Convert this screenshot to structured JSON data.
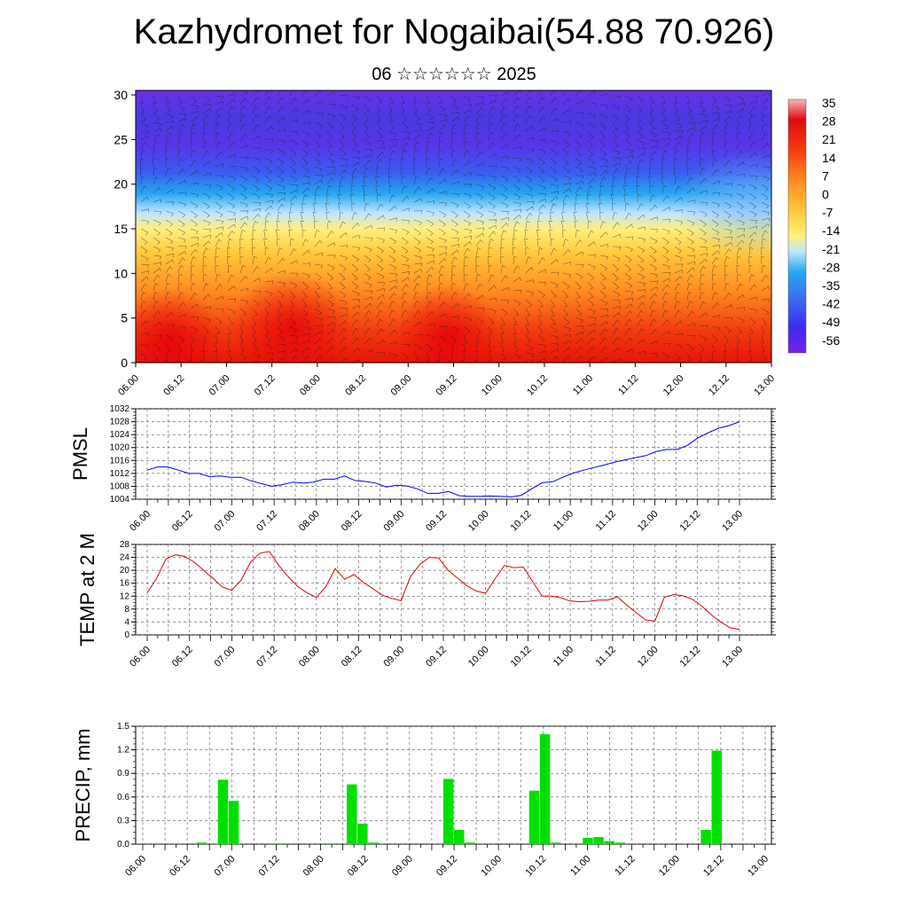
{
  "header": {
    "title": "Kazhydromet for Nogaibai(54.88 70.926)",
    "subtitle": "06 ☆☆☆☆☆☆ 2025"
  },
  "chart_data": [
    {
      "id": "cross_section",
      "type": "heatmap",
      "title": "",
      "xlabel": "",
      "ylabel": "",
      "x_ticks": [
        "06.00",
        "06.12",
        "07.00",
        "07.12",
        "08.00",
        "08.12",
        "09.00",
        "09.12",
        "10.00",
        "10.12",
        "11.00",
        "11.12",
        "12.00",
        "12.12",
        "13.00"
      ],
      "y_ticks": [
        0,
        5,
        10,
        15,
        20,
        25,
        30
      ],
      "ylim": [
        0,
        30.5
      ],
      "colorbar_labels": [
        "35",
        "28",
        "21",
        "14",
        "7",
        "0",
        "-7",
        "-14",
        "-21",
        "-28",
        "-35",
        "-42",
        "-49",
        "-56"
      ],
      "colors": {
        "warm": "#e8140a",
        "mid": "#ffd84a",
        "cold": "#6a2ce8",
        "cyan": "#27a8f0"
      },
      "overlay": "wind barbs and streamlines"
    },
    {
      "id": "pmsl",
      "type": "line",
      "ylabel": "PMSL",
      "ylim": [
        1004,
        1032
      ],
      "y_ticks": [
        1004,
        1008,
        1012,
        1016,
        1020,
        1024,
        1028,
        1032
      ],
      "x_ticks": [
        "06.00",
        "06.12",
        "07.00",
        "07.12",
        "08.00",
        "08.12",
        "09.00",
        "09.12",
        "10.00",
        "10.12",
        "11.00",
        "11.12",
        "12.00",
        "12.12",
        "13.00"
      ],
      "color": "#0000ff",
      "values": [
        1013,
        1014,
        1014,
        1013,
        1012,
        1012,
        1011,
        1011.2,
        1010.8,
        1010.8,
        1009.7,
        1008.8,
        1008,
        1008.5,
        1009.3,
        1009,
        1009.3,
        1010.2,
        1010.2,
        1011.2,
        1009.8,
        1009.5,
        1009,
        1007.8,
        1008.3,
        1008.1,
        1007.2,
        1005.8,
        1005.8,
        1006.4,
        1005.1,
        1004.9,
        1004.9,
        1005,
        1004.9,
        1004.7,
        1005.2,
        1007.2,
        1009.1,
        1009.4,
        1010.8,
        1012.1,
        1013,
        1013.8,
        1014.6,
        1015.5,
        1016.2,
        1016.9,
        1017.5,
        1018.8,
        1019.4,
        1019.4,
        1020.7,
        1023,
        1024.6,
        1026,
        1026.8,
        1028
      ]
    },
    {
      "id": "temp2m",
      "type": "line",
      "ylabel": "TEMP at 2 M",
      "ylim": [
        0,
        28
      ],
      "y_ticks": [
        0,
        4,
        8,
        12,
        16,
        20,
        24,
        28
      ],
      "x_ticks": [
        "06.00",
        "06.12",
        "07.00",
        "07.12",
        "08.00",
        "08.12",
        "09.00",
        "09.12",
        "10.00",
        "10.12",
        "11.00",
        "11.12",
        "12.00",
        "12.12",
        "13.00"
      ],
      "color": "#e00000",
      "values": [
        13,
        17.5,
        23.5,
        24.8,
        24.3,
        22.5,
        20,
        17.5,
        14.8,
        13.8,
        17,
        22.5,
        25.3,
        25.8,
        21.5,
        18,
        15,
        13,
        11.6,
        15,
        20.5,
        17.2,
        18.7,
        16.2,
        14.3,
        12.3,
        11.3,
        10.6,
        18,
        21.8,
        24,
        23.8,
        20,
        17.6,
        15.2,
        13.6,
        12.9,
        17.4,
        21.5,
        20.8,
        21,
        16.5,
        12,
        12,
        11.5,
        10.5,
        10.3,
        10.4,
        10.8,
        10.8,
        11.8,
        9.2,
        6.9,
        4.6,
        4.3,
        11.6,
        12.5,
        12.1,
        11,
        8.9,
        6.2,
        4,
        2.2,
        1.7
      ]
    },
    {
      "id": "precip",
      "type": "bar",
      "ylabel": "PRECIP, mm",
      "ylim": [
        0,
        1.5
      ],
      "y_ticks": [
        "0.0",
        "0.3",
        "0.6",
        "0.9",
        "1.2",
        "1.5"
      ],
      "x_ticks": [
        "06.00",
        "06.12",
        "07.00",
        "07.12",
        "08.00",
        "08.12",
        "09.00",
        "09.12",
        "10.00",
        "10.12",
        "11.00",
        "11.12",
        "12.00",
        "12.12",
        "13.00"
      ],
      "color": "#00e000",
      "values": [
        0,
        0,
        0,
        0,
        0,
        0.02,
        0,
        0.82,
        0.55,
        0,
        0,
        0,
        0.01,
        0.01,
        0,
        0,
        0,
        0.01,
        0,
        0.76,
        0.26,
        0.02,
        0,
        0,
        0,
        0,
        0,
        0,
        0.83,
        0.18,
        0.02,
        0,
        0,
        0,
        0,
        0,
        0.68,
        1.4,
        0.02,
        0,
        0,
        0.08,
        0.09,
        0.04,
        0.02,
        0,
        0,
        0,
        0,
        0,
        0,
        0,
        0.18,
        1.19,
        0,
        0,
        0,
        0
      ]
    }
  ]
}
